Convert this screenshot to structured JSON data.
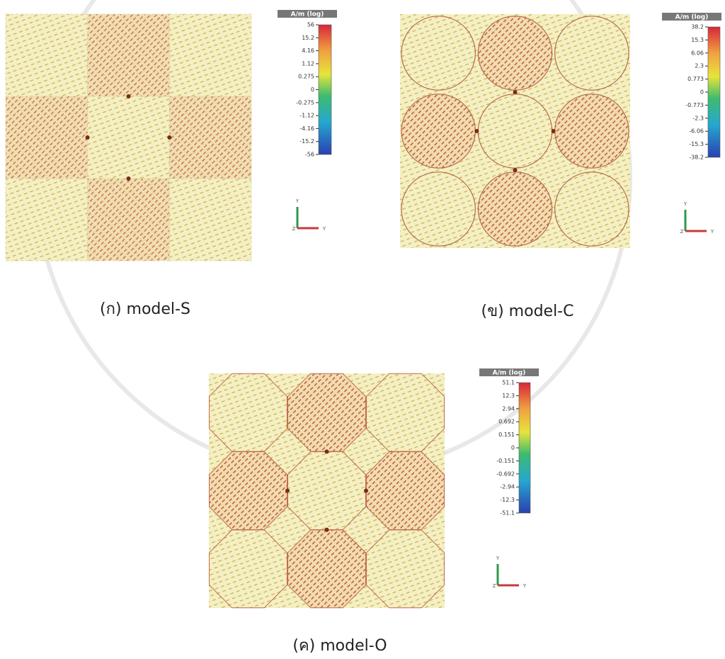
{
  "figure": {
    "panels": [
      {
        "caption": "(ก) model-S",
        "colorbar": {
          "title": "A/m (log)",
          "ticks": [
            "56",
            "15.2",
            "4.16",
            "1.12",
            "0.275",
            "0",
            "-0.275",
            "-1.12",
            "-4.16",
            "-15.2",
            "-56"
          ]
        },
        "axes": {
          "up": "Y",
          "origin": "Z",
          "right": "Y"
        }
      },
      {
        "caption": "(ข) model-C",
        "colorbar": {
          "title": "A/m (log)",
          "ticks": [
            "38.2",
            "15.3",
            "6.06",
            "2.3",
            "0.773",
            "0",
            "-0.773",
            "-2.3",
            "-6.06",
            "-15.3",
            "-38.2"
          ]
        },
        "axes": {
          "up": "Y",
          "origin": "Z",
          "right": "Y"
        }
      },
      {
        "caption": "(ค) model-O",
        "colorbar": {
          "title": "A/m (log)",
          "ticks": [
            "51.1",
            "12.3",
            "2.94",
            "0.692",
            "0.151",
            "0",
            "-0.151",
            "-0.692",
            "-2.94",
            "-12.3",
            "-51.1"
          ]
        },
        "axes": {
          "up": "Y",
          "origin": "Z",
          "right": "Y"
        }
      }
    ]
  }
}
